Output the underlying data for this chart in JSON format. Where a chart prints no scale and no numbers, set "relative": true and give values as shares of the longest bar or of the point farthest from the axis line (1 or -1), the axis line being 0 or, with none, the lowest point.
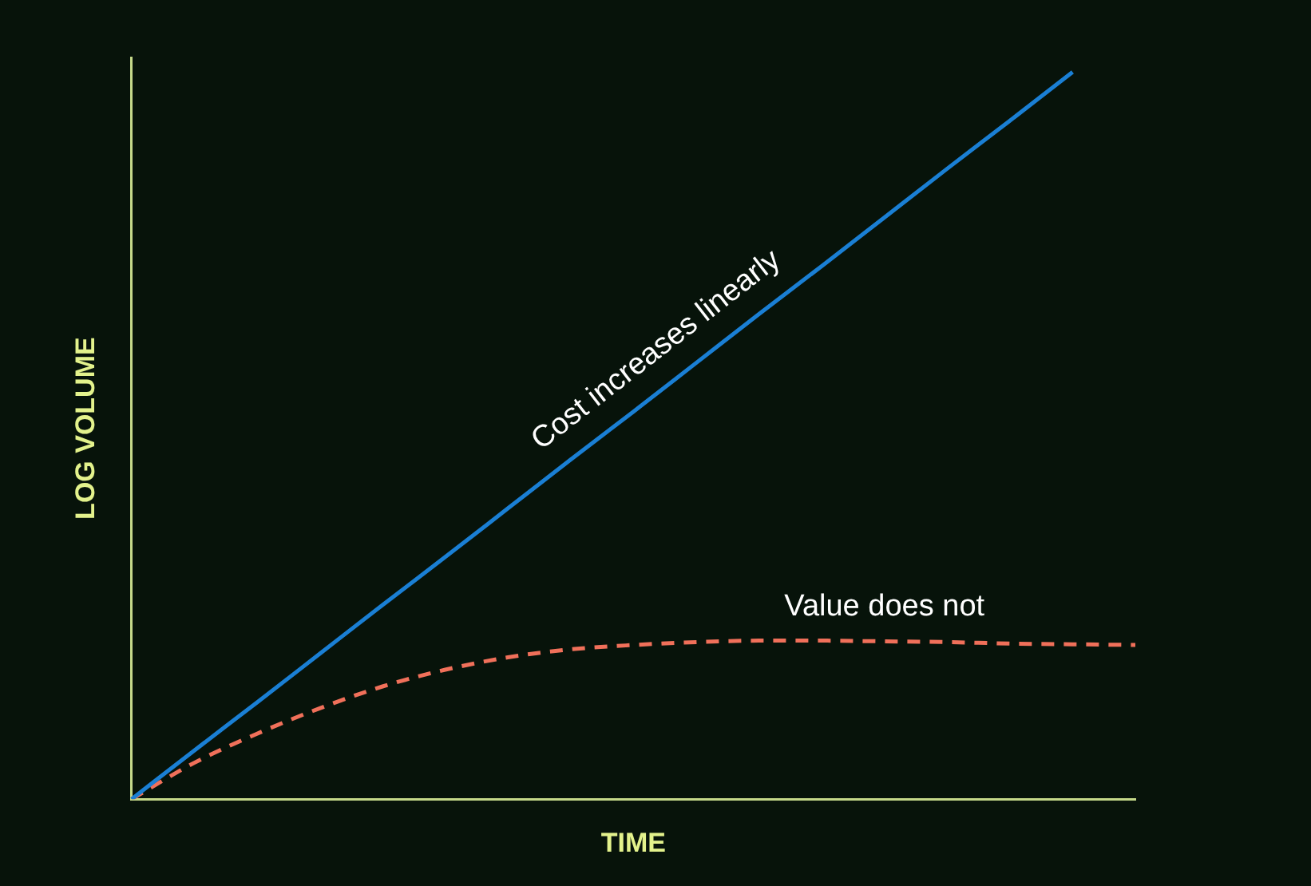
{
  "chart_data": {
    "type": "line",
    "xlabel": "TIME",
    "ylabel": "LOG VOLUME",
    "relative": true,
    "legend": false,
    "grid": false,
    "tick_labels": false,
    "marker": "none",
    "categories": [
      null,
      null,
      null,
      null,
      null,
      null,
      null,
      null,
      null,
      null,
      null,
      null,
      null,
      null,
      null,
      null,
      null
    ],
    "series": [
      {
        "name": "Cost increases linearly",
        "color": "#1a7fd4",
        "line_style": "solid",
        "values": [
          0,
          0.067,
          0.133,
          0.2,
          0.267,
          0.333,
          0.4,
          0.467,
          0.533,
          0.6,
          0.667,
          0.733,
          0.8,
          0.867,
          0.933,
          1,
          null
        ]
      },
      {
        "name": "Value does not",
        "color": "#f0705a",
        "line_style": "dashed",
        "values": [
          0,
          0.05,
          0.09,
          0.125,
          0.155,
          0.178,
          0.195,
          0.206,
          0.212,
          0.216,
          0.218,
          0.218,
          0.217,
          0.216,
          0.214,
          0.213,
          0.212
        ]
      }
    ]
  }
}
